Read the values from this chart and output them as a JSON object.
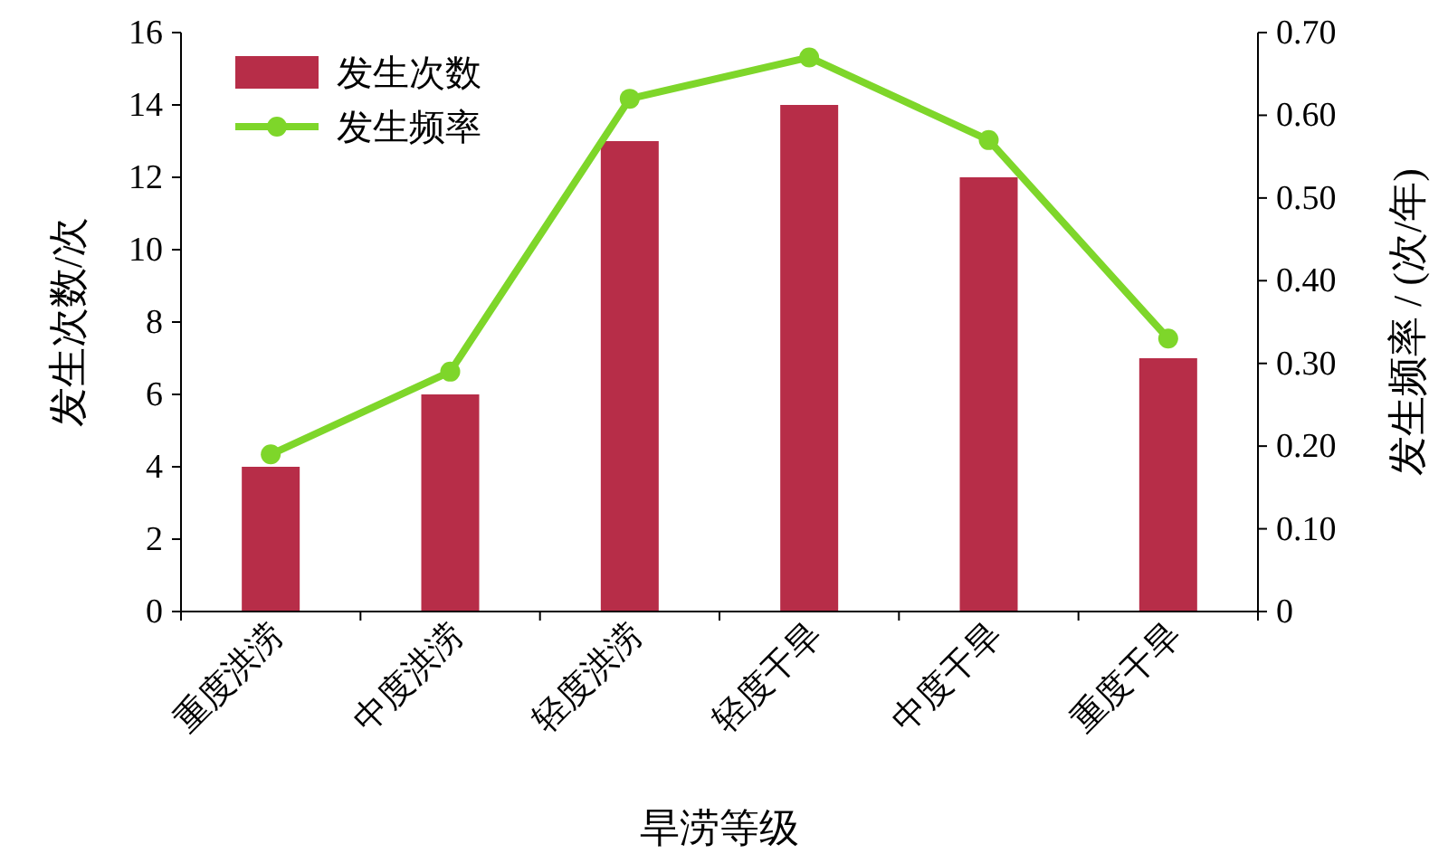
{
  "chart_data": {
    "type": "bar",
    "xlabel": "旱涝等级",
    "ylabel": "发生次数/次",
    "y2label": "发生频率 / (次/年)",
    "categories": [
      "重度洪涝",
      "中度洪涝",
      "轻度洪涝",
      "轻度干旱",
      "中度干旱",
      "重度干旱"
    ],
    "series": [
      {
        "name": "发生次数",
        "color": "#b72d48",
        "values": [
          4,
          6,
          13,
          14,
          12,
          7
        ]
      },
      {
        "name": "发生频率",
        "type": "line",
        "axis": "y2",
        "color": "#7ed62a",
        "values": [
          0.19,
          0.29,
          0.62,
          0.67,
          0.57,
          0.33
        ]
      }
    ],
    "ylim": [
      0,
      16
    ],
    "yticks": [
      0,
      2,
      4,
      6,
      8,
      10,
      12,
      14,
      16
    ],
    "y2lim": [
      0,
      0.7
    ],
    "y2ticks": [
      0,
      {
        "value": 0.1,
        "label": "0.10"
      },
      {
        "value": 0.2,
        "label": "0.20"
      },
      {
        "value": 0.3,
        "label": "0.30"
      },
      {
        "value": 0.4,
        "label": "0.40"
      },
      {
        "value": 0.5,
        "label": "0.50"
      },
      {
        "value": 0.6,
        "label": "0.60"
      },
      {
        "value": 0.7,
        "label": "0.70"
      }
    ],
    "marker": "circle",
    "legend": "top left",
    "grid": false
  }
}
